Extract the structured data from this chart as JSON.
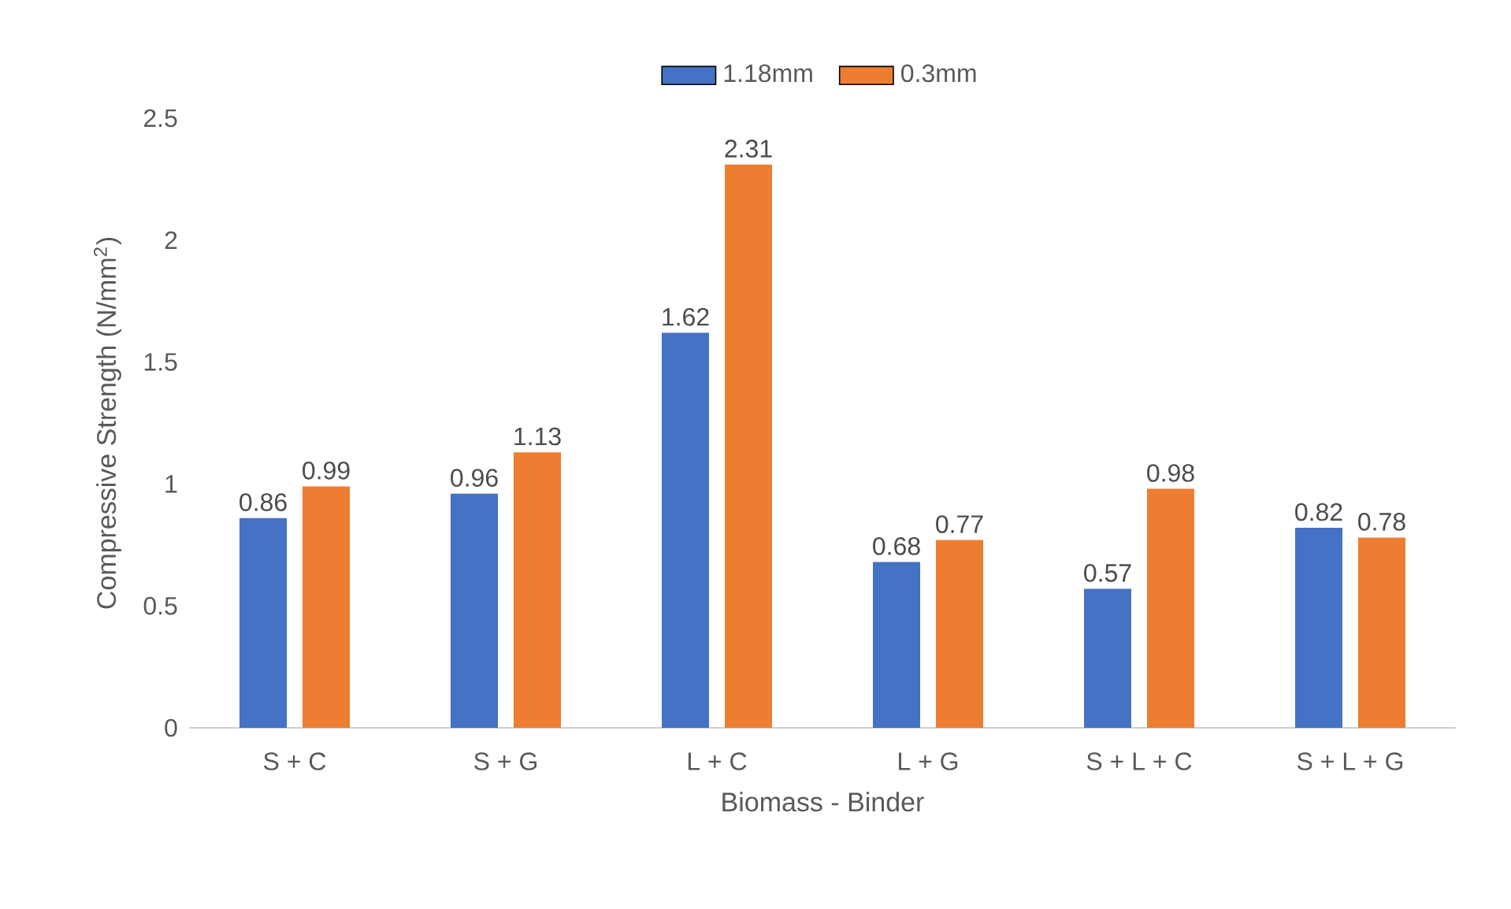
{
  "chart_data": {
    "type": "bar",
    "xlabel": "Biomass - Binder",
    "ylabel": "Compressive Strength (N/mm$^{2}$)",
    "categories": [
      "S + C",
      "S + G",
      "L + C",
      "L + G",
      "S + L + C",
      "S + L + G"
    ],
    "series": [
      {
        "name": "1.18mm",
        "color": "#4472c4",
        "values": [
          0.86,
          0.96,
          1.62,
          0.68,
          0.57,
          0.82
        ]
      },
      {
        "name": "0.3mm",
        "color": "#ed7d31",
        "values": [
          0.99,
          1.13,
          2.31,
          0.77,
          0.98,
          0.78
        ]
      }
    ],
    "ylim": [
      0,
      2.5
    ],
    "yticks": [
      0,
      0.5,
      1,
      1.5,
      2,
      2.5
    ],
    "grid": false,
    "legend": "top",
    "data_labels": true
  }
}
